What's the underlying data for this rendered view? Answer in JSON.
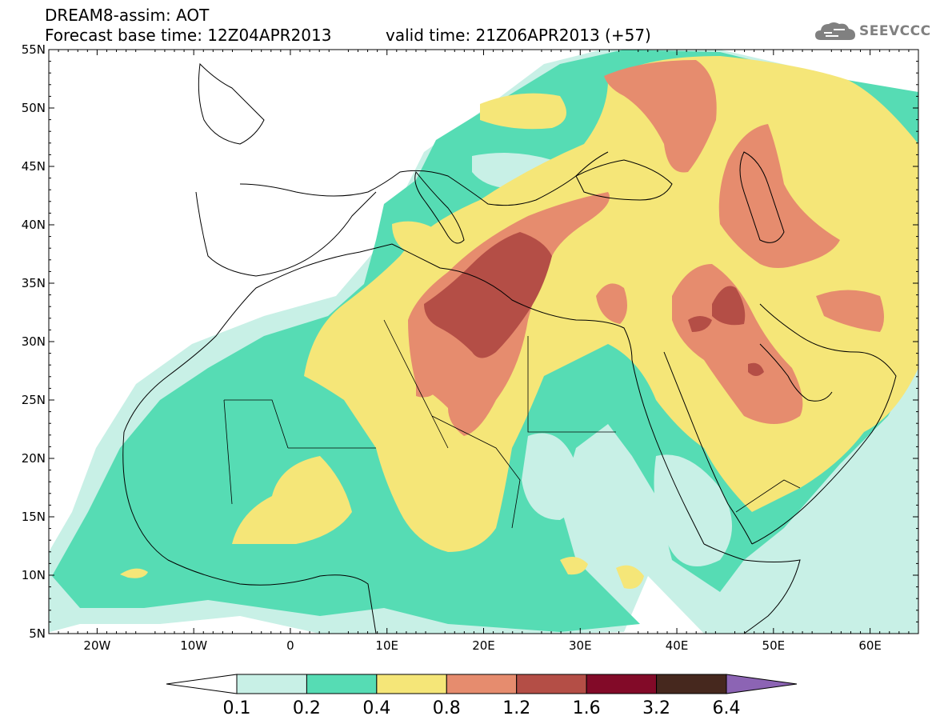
{
  "header": {
    "title": "DREAM8-assim: AOT",
    "base_time": "Forecast base time: 12Z04APR2013",
    "valid_time": "valid time: 21Z06APR2013 (+57)"
  },
  "logo": {
    "text": "SEEVCCC",
    "icon": "cloud-icon",
    "color": "#808080"
  },
  "map": {
    "projection": "lat-lon",
    "lon_range": [
      -25,
      65
    ],
    "lat_range": [
      5,
      55
    ],
    "lon_ticks": [
      "20W",
      "10W",
      "0",
      "10E",
      "20E",
      "30E",
      "40E",
      "50E",
      "60E"
    ],
    "lat_ticks": [
      "55N",
      "50N",
      "45N",
      "40N",
      "35N",
      "30N",
      "25N",
      "20N",
      "15N",
      "10N",
      "5N"
    ],
    "field": "Aerosol Optical Thickness (AOT)"
  },
  "colorbar": {
    "labels": [
      "0.1",
      "0.2",
      "0.4",
      "0.8",
      "1.2",
      "1.6",
      "3.2",
      "6.4"
    ],
    "colors": [
      "#ffffff",
      "#c8f0e6",
      "#56dcb4",
      "#f5e678",
      "#e68c6e",
      "#b44e46",
      "#820a28",
      "#46281e",
      "#8c64b4"
    ]
  }
}
